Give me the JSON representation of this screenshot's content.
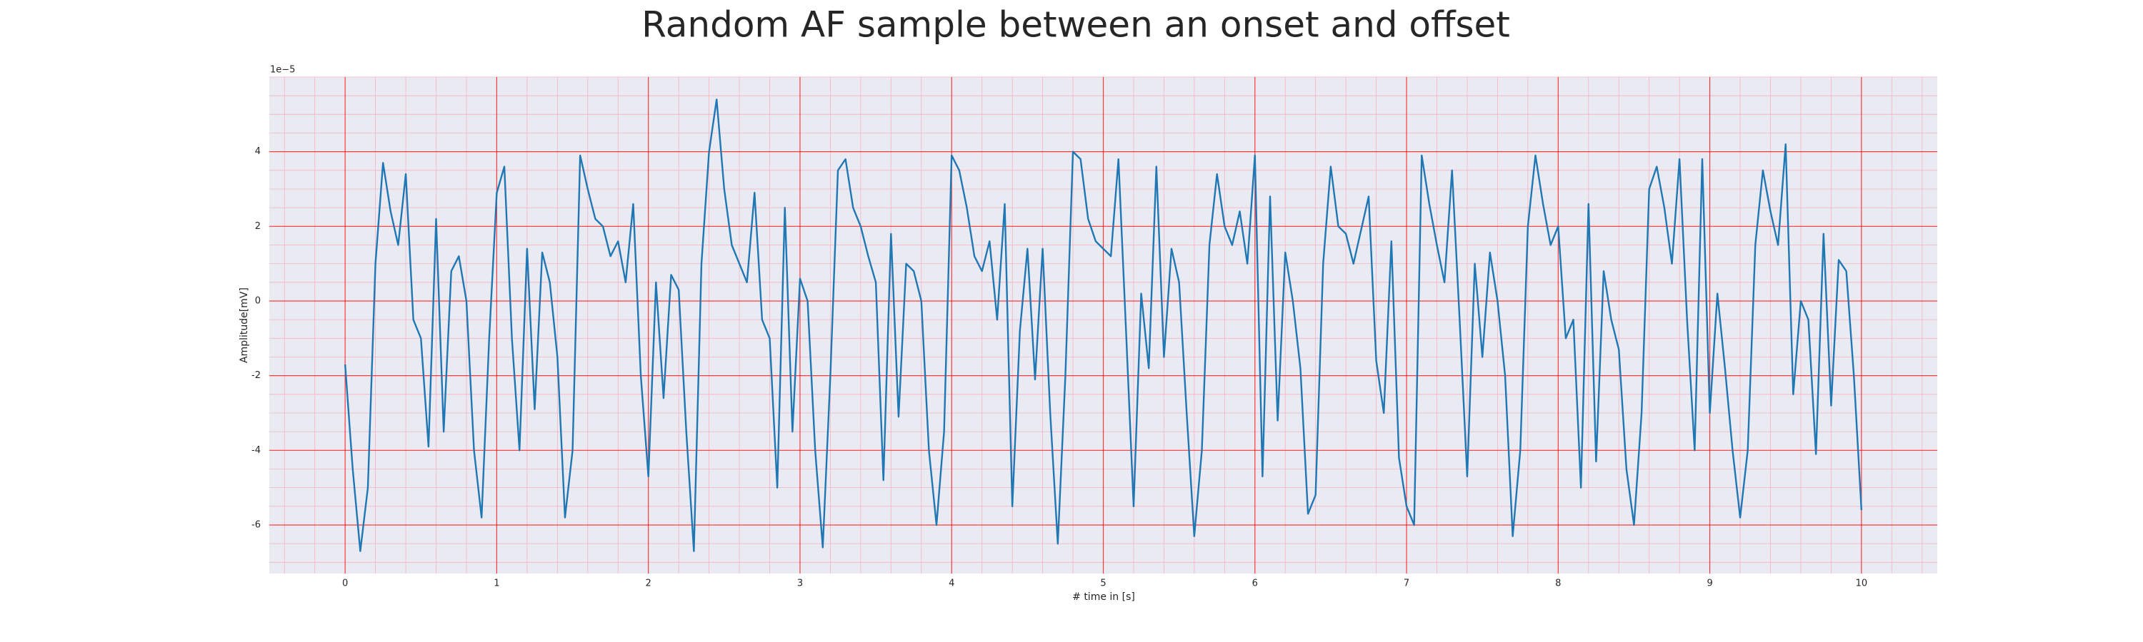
{
  "chart_data": {
    "type": "line",
    "title": "Random AF sample between an onset and offset",
    "xlabel": "# time in [s]",
    "ylabel": "Amplitude[mV]",
    "offset_label": "1e−5",
    "color": "#1f77b4",
    "background": "#eaeaf2",
    "grid": true,
    "grid_color": "#ff0000",
    "minor_grid": {
      "x_step": 0.2,
      "y_step": 0.5,
      "color": "#f4b3c2"
    },
    "xlim": [
      -0.5,
      10.5
    ],
    "ylim": [
      -7.3,
      6.0
    ],
    "xticks": [
      0,
      1,
      2,
      3,
      4,
      5,
      6,
      7,
      8,
      9,
      10
    ],
    "yticks": [
      -6,
      -4,
      -2,
      0,
      2,
      4
    ],
    "x": [
      0,
      0.05,
      0.1,
      0.15,
      0.2,
      0.25,
      0.3,
      0.35,
      0.4,
      0.45,
      0.5,
      0.55,
      0.6,
      0.65,
      0.7,
      0.75,
      0.8,
      0.85,
      0.9,
      0.95,
      1,
      1.05,
      1.1,
      1.15,
      1.2,
      1.25,
      1.3,
      1.35,
      1.4,
      1.45,
      1.5,
      1.55,
      1.6,
      1.65,
      1.7,
      1.75,
      1.8,
      1.85,
      1.9,
      1.95,
      2,
      2.05,
      2.1,
      2.15,
      2.2,
      2.25,
      2.3,
      2.35,
      2.4,
      2.45,
      2.5,
      2.55,
      2.6,
      2.65,
      2.7,
      2.75,
      2.8,
      2.85,
      2.9,
      2.95,
      3,
      3.05,
      3.1,
      3.15,
      3.2,
      3.25,
      3.3,
      3.35,
      3.4,
      3.45,
      3.5,
      3.55,
      3.6,
      3.65,
      3.7,
      3.75,
      3.8,
      3.85,
      3.9,
      3.95,
      4,
      4.05,
      4.1,
      4.15,
      4.2,
      4.25,
      4.3,
      4.35,
      4.4,
      4.45,
      4.5,
      4.55,
      4.6,
      4.65,
      4.7,
      4.75,
      4.8,
      4.85,
      4.9,
      4.95,
      5,
      5.05,
      5.1,
      5.15,
      5.2,
      5.25,
      5.3,
      5.35,
      5.4,
      5.45,
      5.5,
      5.55,
      5.6,
      5.65,
      5.7,
      5.75,
      5.8,
      5.85,
      5.9,
      5.95,
      6,
      6.05,
      6.1,
      6.15,
      6.2,
      6.25,
      6.3,
      6.35,
      6.4,
      6.45,
      6.5,
      6.55,
      6.6,
      6.65,
      6.7,
      6.75,
      6.8,
      6.85,
      6.9,
      6.95,
      7,
      7.05,
      7.1,
      7.15,
      7.2,
      7.25,
      7.3,
      7.35,
      7.4,
      7.45,
      7.5,
      7.55,
      7.6,
      7.65,
      7.7,
      7.75,
      7.8,
      7.85,
      7.9,
      7.95,
      8,
      8.05,
      8.1,
      8.15,
      8.2,
      8.25,
      8.3,
      8.35,
      8.4,
      8.45,
      8.5,
      8.55,
      8.6,
      8.65,
      8.7,
      8.75,
      8.8,
      8.85,
      8.9,
      8.95,
      9,
      9.05,
      9.1,
      9.15,
      9.2,
      9.25,
      9.3,
      9.35,
      9.4,
      9.45,
      9.5,
      9.55,
      9.6,
      9.65,
      9.7,
      9.75,
      9.8,
      9.85,
      9.9,
      9.95,
      10
    ],
    "values": [
      -1.7,
      -4.5,
      -6.7,
      -5.0,
      1.0,
      3.7,
      2.4,
      1.5,
      3.4,
      -0.5,
      -1.0,
      -3.9,
      2.2,
      -3.5,
      0.8,
      1.2,
      0.0,
      -4.0,
      -5.8,
      -1.0,
      2.9,
      3.6,
      -1.0,
      -4.0,
      1.4,
      -2.9,
      1.3,
      0.5,
      -1.5,
      -5.8,
      -4.0,
      3.9,
      3.0,
      2.2,
      2.0,
      1.2,
      1.6,
      0.5,
      2.6,
      -2.0,
      -4.7,
      0.5,
      -2.6,
      0.7,
      0.3,
      -3.5,
      -6.7,
      1.0,
      4.0,
      5.4,
      3.0,
      1.5,
      1.0,
      0.5,
      2.9,
      -0.5,
      -1.0,
      -5.0,
      2.5,
      -3.5,
      0.6,
      0.0,
      -4.0,
      -6.6,
      -2.0,
      3.5,
      3.8,
      2.5,
      2.0,
      1.2,
      0.5,
      -4.8,
      1.8,
      -3.1,
      1.0,
      0.8,
      0.0,
      -4.0,
      -6.0,
      -3.5,
      3.9,
      3.5,
      2.5,
      1.2,
      0.8,
      1.6,
      -0.5,
      2.6,
      -5.5,
      -0.8,
      1.4,
      -2.1,
      1.4,
      -3.0,
      -6.5,
      -2.0,
      4.0,
      3.8,
      2.2,
      1.6,
      1.4,
      1.2,
      3.8,
      -0.8,
      -5.5,
      0.2,
      -1.8,
      3.6,
      -1.5,
      1.4,
      0.5,
      -3.0,
      -6.3,
      -4.0,
      1.5,
      3.4,
      2.0,
      1.5,
      2.4,
      1.0,
      3.9,
      -4.7,
      2.8,
      -3.2,
      1.3,
      0.0,
      -1.8,
      -5.7,
      -5.2,
      1.0,
      3.6,
      2.0,
      1.8,
      1.0,
      1.9,
      2.8,
      -1.6,
      -3.0,
      1.6,
      -4.2,
      -5.5,
      -6.0,
      3.9,
      2.6,
      1.5,
      0.5,
      3.5,
      -0.5,
      -4.7,
      1.0,
      -1.5,
      1.3,
      0.0,
      -2.0,
      -6.3,
      -4.0,
      2.0,
      3.9,
      2.6,
      1.5,
      2.0,
      -1.0,
      -0.5,
      -5.0,
      2.6,
      -4.3,
      0.8,
      -0.5,
      -1.3,
      -4.5,
      -6.0,
      -3.0,
      3.0,
      3.6,
      2.5,
      1.0,
      3.8,
      -0.5,
      -4.0,
      3.8,
      -3.0,
      0.2,
      -1.8,
      -4.0,
      -5.8,
      -4.0,
      1.5,
      3.5,
      2.4,
      1.5,
      4.2,
      -2.5,
      0.0,
      -0.5,
      -4.1,
      1.8,
      -2.8,
      1.1,
      0.8,
      -2.0,
      -5.6
    ]
  }
}
